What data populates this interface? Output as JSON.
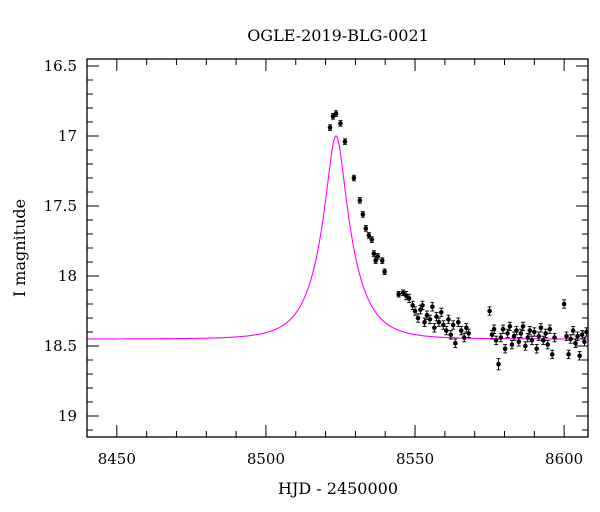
{
  "chart_data": {
    "type": "scatter",
    "title": "OGLE-2019-BLG-0021",
    "xlabel": "HJD - 2450000",
    "ylabel": "I magnitude",
    "xlim": [
      8440,
      8608
    ],
    "ylim": [
      16.45,
      19.15
    ],
    "y_inverted": true,
    "x_ticks": [
      8450,
      8500,
      8550,
      8600
    ],
    "x_tick_labels": [
      "8450",
      "8500",
      "8550",
      "8600"
    ],
    "y_ticks": [
      16.5,
      17,
      17.5,
      18,
      18.5,
      19
    ],
    "y_tick_labels": [
      "16.5",
      "17",
      "17.5",
      "18",
      "18.5",
      "19"
    ],
    "grid": false,
    "series": [
      {
        "kind": "points_with_errorbars",
        "color": "#000000",
        "points": [
          [
            8521.5,
            16.94,
            0.02
          ],
          [
            8522.5,
            16.86,
            0.02
          ],
          [
            8523.5,
            16.84,
            0.02
          ],
          [
            8525.0,
            16.91,
            0.02
          ],
          [
            8526.5,
            17.04,
            0.02
          ],
          [
            8529.5,
            17.3,
            0.02
          ],
          [
            8531.5,
            17.46,
            0.02
          ],
          [
            8532.5,
            17.56,
            0.02
          ],
          [
            8533.5,
            17.66,
            0.02
          ],
          [
            8534.5,
            17.71,
            0.02
          ],
          [
            8535.5,
            17.74,
            0.02
          ],
          [
            8536.2,
            17.84,
            0.02
          ],
          [
            8536.8,
            17.89,
            0.02
          ],
          [
            8537.5,
            17.86,
            0.02
          ],
          [
            8539.0,
            17.89,
            0.02
          ],
          [
            8539.8,
            17.97,
            0.02
          ],
          [
            8544.5,
            18.13,
            0.02
          ],
          [
            8546.0,
            18.12,
            0.02
          ],
          [
            8547.0,
            18.14,
            0.03
          ],
          [
            8548.0,
            18.16,
            0.03
          ],
          [
            8549.2,
            18.21,
            0.03
          ],
          [
            8550.0,
            18.25,
            0.03
          ],
          [
            8551.0,
            18.3,
            0.03
          ],
          [
            8551.8,
            18.24,
            0.03
          ],
          [
            8552.5,
            18.21,
            0.03
          ],
          [
            8553.2,
            18.33,
            0.03
          ],
          [
            8554.0,
            18.28,
            0.03
          ],
          [
            8555.0,
            18.31,
            0.03
          ],
          [
            8555.8,
            18.22,
            0.03
          ],
          [
            8556.5,
            18.37,
            0.03
          ],
          [
            8557.2,
            18.29,
            0.03
          ],
          [
            8558.0,
            18.33,
            0.03
          ],
          [
            8558.8,
            18.26,
            0.03
          ],
          [
            8559.5,
            18.35,
            0.03
          ],
          [
            8560.5,
            18.39,
            0.03
          ],
          [
            8561.2,
            18.31,
            0.03
          ],
          [
            8562.0,
            18.42,
            0.03
          ],
          [
            8562.8,
            18.35,
            0.03
          ],
          [
            8563.5,
            18.48,
            0.03
          ],
          [
            8564.5,
            18.33,
            0.03
          ],
          [
            8565.5,
            18.39,
            0.03
          ],
          [
            8566.5,
            18.44,
            0.03
          ],
          [
            8567.2,
            18.37,
            0.03
          ],
          [
            8568.0,
            18.41,
            0.03
          ],
          [
            8575.0,
            18.25,
            0.03
          ],
          [
            8575.8,
            18.42,
            0.03
          ],
          [
            8576.5,
            18.38,
            0.03
          ],
          [
            8577.2,
            18.46,
            0.03
          ],
          [
            8578.0,
            18.63,
            0.04
          ],
          [
            8578.8,
            18.44,
            0.03
          ],
          [
            8579.5,
            18.38,
            0.03
          ],
          [
            8580.2,
            18.52,
            0.03
          ],
          [
            8581.0,
            18.41,
            0.03
          ],
          [
            8581.8,
            18.36,
            0.03
          ],
          [
            8582.5,
            18.49,
            0.03
          ],
          [
            8583.2,
            18.43,
            0.03
          ],
          [
            8584.0,
            18.39,
            0.03
          ],
          [
            8584.8,
            18.47,
            0.03
          ],
          [
            8585.5,
            18.41,
            0.03
          ],
          [
            8586.2,
            18.36,
            0.03
          ],
          [
            8587.0,
            18.5,
            0.03
          ],
          [
            8587.8,
            18.44,
            0.03
          ],
          [
            8588.5,
            18.39,
            0.03
          ],
          [
            8589.2,
            18.46,
            0.03
          ],
          [
            8590.0,
            18.4,
            0.03
          ],
          [
            8590.8,
            18.52,
            0.03
          ],
          [
            8591.5,
            18.43,
            0.03
          ],
          [
            8592.2,
            18.37,
            0.03
          ],
          [
            8593.0,
            18.46,
            0.03
          ],
          [
            8593.8,
            18.41,
            0.03
          ],
          [
            8594.5,
            18.49,
            0.03
          ],
          [
            8595.2,
            18.38,
            0.03
          ],
          [
            8596.0,
            18.56,
            0.03
          ],
          [
            8596.8,
            18.44,
            0.03
          ],
          [
            8600.0,
            18.2,
            0.03
          ],
          [
            8600.8,
            18.43,
            0.03
          ],
          [
            8601.5,
            18.56,
            0.03
          ],
          [
            8602.2,
            18.45,
            0.03
          ],
          [
            8603.0,
            18.39,
            0.03
          ],
          [
            8603.8,
            18.48,
            0.03
          ],
          [
            8604.5,
            18.43,
            0.03
          ],
          [
            8605.2,
            18.57,
            0.03
          ],
          [
            8606.0,
            18.42,
            0.03
          ],
          [
            8606.8,
            18.47,
            0.03
          ],
          [
            8607.5,
            18.4,
            0.03
          ]
        ]
      },
      {
        "kind": "model_curve",
        "color": "#ff00ff",
        "model": {
          "type": "point_lens_magnitude",
          "t0": 8523.5,
          "u0": 0.27,
          "tE": 10.5,
          "baseline_mag": 18.45
        }
      }
    ]
  }
}
